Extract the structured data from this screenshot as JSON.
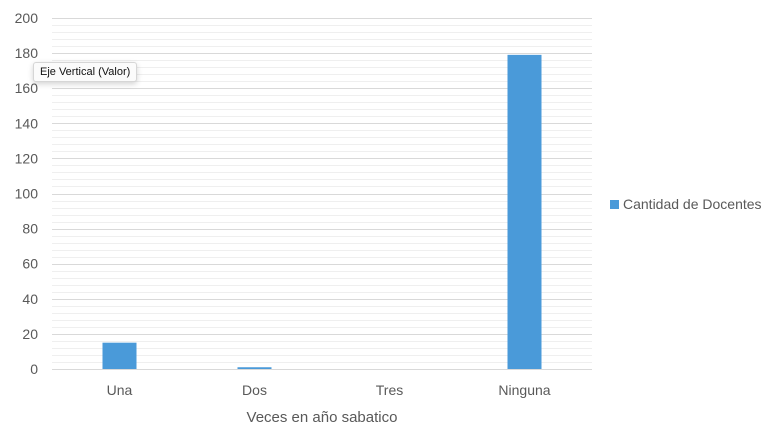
{
  "chart_data": {
    "type": "bar",
    "categories": [
      "Una",
      "Dos",
      "Tres",
      "Ninguna"
    ],
    "series": [
      {
        "name": "Cantidad de Docentes",
        "values": [
          15,
          1,
          0,
          179
        ],
        "color": "#4a9ad9"
      }
    ],
    "xlabel": "Veces en año sabatico",
    "ylabel": "",
    "ylim": [
      0,
      200
    ],
    "yticks": [
      0,
      20,
      40,
      60,
      80,
      100,
      120,
      140,
      160,
      180,
      200
    ],
    "grid": true,
    "legend_position": "right"
  },
  "tooltip": {
    "text": "Eje Vertical (Valor)"
  }
}
